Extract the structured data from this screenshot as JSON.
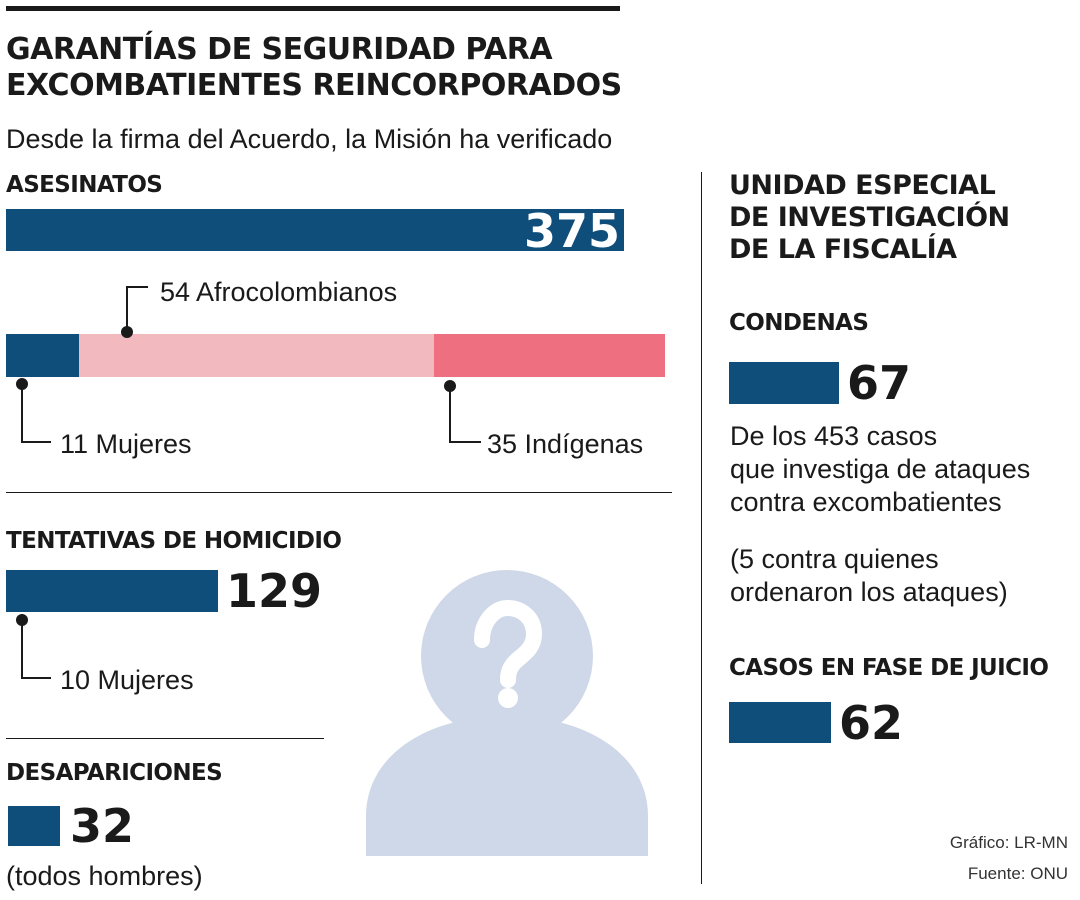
{
  "header": {
    "title_line1": "GARANTÍAS DE SEGURIDAD PARA",
    "title_line2": "EXCOMBATIENTES REINCORPORADOS",
    "subtitle": "Desde la firma del Acuerdo, la Misión ha verificado"
  },
  "asesinatos": {
    "label": "ASESINATOS",
    "total": "375",
    "segments": [
      {
        "label": "11 Mujeres",
        "value": 11,
        "color": "#0f4d7a"
      },
      {
        "label": "54 Afrocolombianos",
        "value": 54,
        "color": "#f2b9bf"
      },
      {
        "label": "35 Indígenas",
        "value": 35,
        "color": "#ee6f80"
      }
    ]
  },
  "tentativas": {
    "label": "TENTATIVAS DE HOMICIDIO",
    "total": "129",
    "sub": "10 Mujeres"
  },
  "desapariciones": {
    "label": "DESAPARICIONES",
    "total": "32",
    "note": "(todos hombres)"
  },
  "unidad": {
    "title_line1": "UNIDAD ESPECIAL",
    "title_line2": "DE INVESTIGACIÓN",
    "title_line3": "DE LA FISCALÍA",
    "condenas": {
      "label": "CONDENAS",
      "total": "67",
      "note_line1": "De los 453 casos",
      "note_line2": "que investiga de ataques",
      "note_line3": "contra excombatientes",
      "note2_line1": "(5 contra quienes",
      "note2_line2": "ordenaron los ataques)"
    },
    "juicio": {
      "label": "CASOS EN FASE DE JUICIO",
      "total": "62"
    }
  },
  "credits": {
    "grafico": "Gráfico: LR-MN",
    "fuente": "Fuente: ONU"
  },
  "colors": {
    "bar": "#0f4d7a",
    "pink_light": "#f2b9bf",
    "pink": "#ee6f80",
    "silhouette": "#cfd8e8"
  },
  "icon": "person-question-icon",
  "chart_data": {
    "type": "bar",
    "categories": [
      "ASESINATOS",
      "TENTATIVAS DE HOMICIDIO",
      "DESAPARICIONES",
      "CONDENAS",
      "CASOS EN FASE DE JUICIO"
    ],
    "values": [
      375,
      129,
      32,
      67,
      62
    ],
    "breakdown": {
      "ASESINATOS": [
        {
          "label": "11 Mujeres",
          "value": 11
        },
        {
          "label": "54 Afrocolombianos",
          "value": 54
        },
        {
          "label": "35 Indígenas",
          "value": 35
        }
      ],
      "TENTATIVAS DE HOMICIDIO": [
        {
          "label": "10 Mujeres",
          "value": 10
        }
      ]
    }
  }
}
